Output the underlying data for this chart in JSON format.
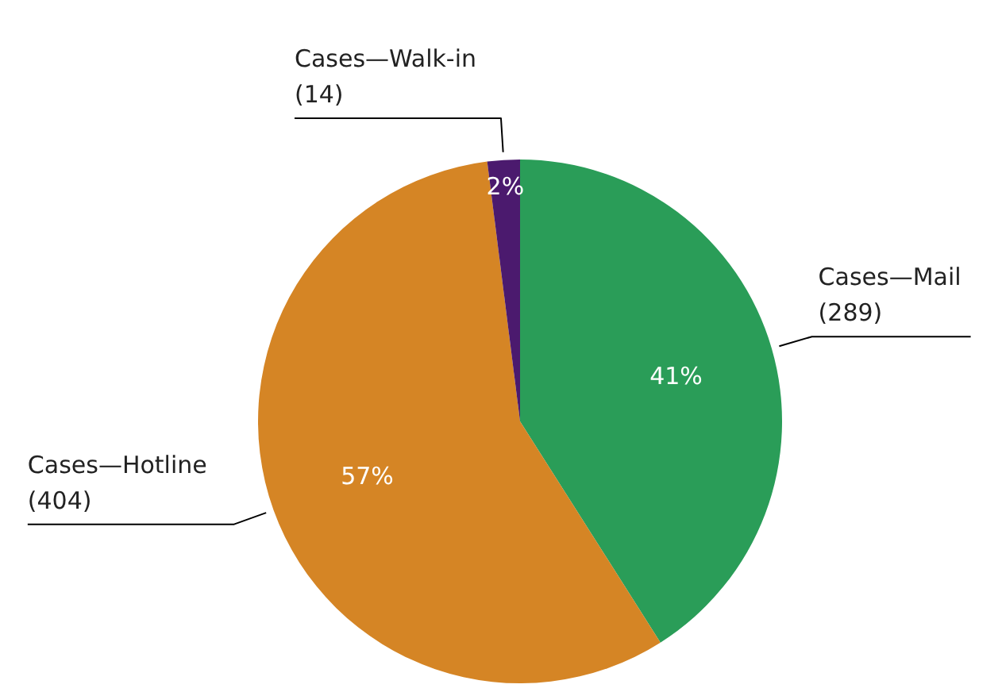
{
  "chart_data": {
    "type": "pie",
    "categories": [
      "Cases—Mail\n(289)",
      "Cases—Hotline\n(404)",
      "Cases—Walk-in\n(14)"
    ],
    "values": [
      41,
      57,
      2
    ],
    "colors": [
      "#2a9d58",
      "#d58525",
      "#4b1a6e"
    ],
    "value_labels": [
      "41%",
      "57%",
      "2%"
    ]
  }
}
